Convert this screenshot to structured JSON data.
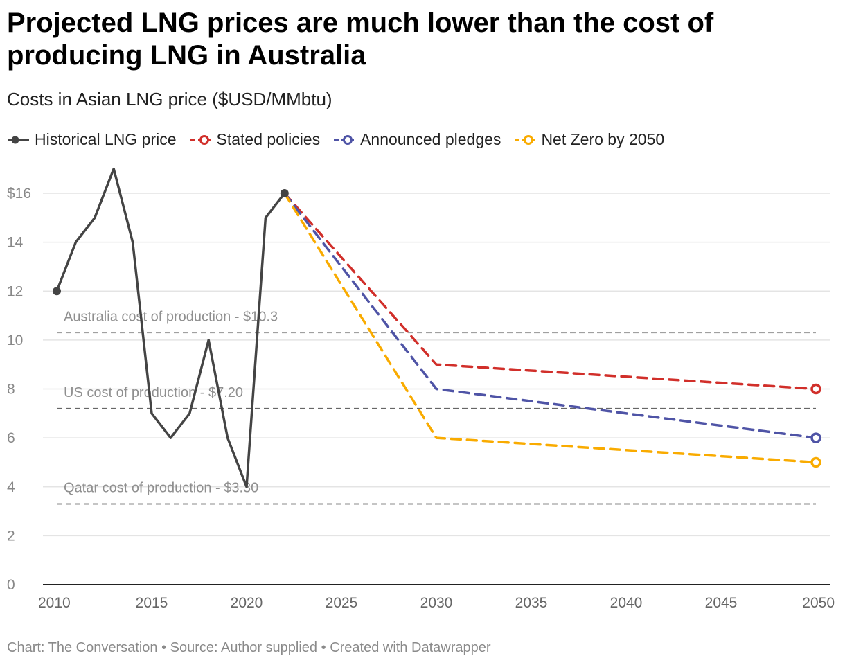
{
  "title": "Projected LNG prices are much lower than the cost of producing LNG in Australia",
  "subtitle": "Costs in Asian LNG price ($USD/MMbtu)",
  "footer": {
    "chart": "Chart: The Conversation",
    "source": "Source: Author supplied",
    "created": "Created with Datawrapper",
    "separator": "•"
  },
  "colors": {
    "historical": "#444444",
    "stated": "#d12f2a",
    "announced": "#4f54a6",
    "netzero": "#f9ab00",
    "grid": "#e4e4e4",
    "reference": "#888888",
    "axis": "#222222"
  },
  "chart_data": {
    "type": "line",
    "title": "Projected LNG prices are much lower than the cost of producing LNG in Australia",
    "ylabel": "Costs in Asian LNG price ($USD/MMbtu)",
    "xlabel": "",
    "xlim": [
      2010,
      2050
    ],
    "ylim": [
      0,
      16
    ],
    "grid": true,
    "legend_position": "top-left",
    "x_ticks": [
      2010,
      2015,
      2020,
      2025,
      2030,
      2035,
      2040,
      2045,
      2050
    ],
    "y_ticks": [
      0,
      2,
      4,
      6,
      8,
      10,
      12,
      14,
      16
    ],
    "y_tick_labels": [
      "0",
      "2",
      "4",
      "6",
      "8",
      "10",
      "12",
      "14",
      "$16"
    ],
    "series": [
      {
        "name": "Historical LNG price",
        "style": "solid",
        "color_key": "historical",
        "x": [
          2010,
          2011,
          2012,
          2013,
          2014,
          2015,
          2016,
          2017,
          2018,
          2019,
          2020,
          2021,
          2022
        ],
        "values": [
          12,
          14,
          15,
          17,
          14,
          7,
          6,
          7,
          10,
          6,
          4,
          15,
          16
        ]
      },
      {
        "name": "Stated policies",
        "style": "dashed",
        "color_key": "stated",
        "x": [
          2022,
          2030,
          2050
        ],
        "values": [
          16,
          9,
          8
        ]
      },
      {
        "name": "Announced pledges",
        "style": "dashed",
        "color_key": "announced",
        "x": [
          2022,
          2030,
          2050
        ],
        "values": [
          16,
          8,
          6
        ]
      },
      {
        "name": "Net Zero by 2050",
        "style": "dashed",
        "color_key": "netzero",
        "x": [
          2022,
          2030,
          2050
        ],
        "values": [
          16,
          6,
          5
        ]
      }
    ],
    "reference_lines": [
      {
        "label": "Australia cost of production - $10.3",
        "value": 10.3
      },
      {
        "label": "US cost of production - $7.20",
        "value": 7.2
      },
      {
        "label": "Qatar cost of production - $3.30",
        "value": 3.3
      }
    ]
  }
}
